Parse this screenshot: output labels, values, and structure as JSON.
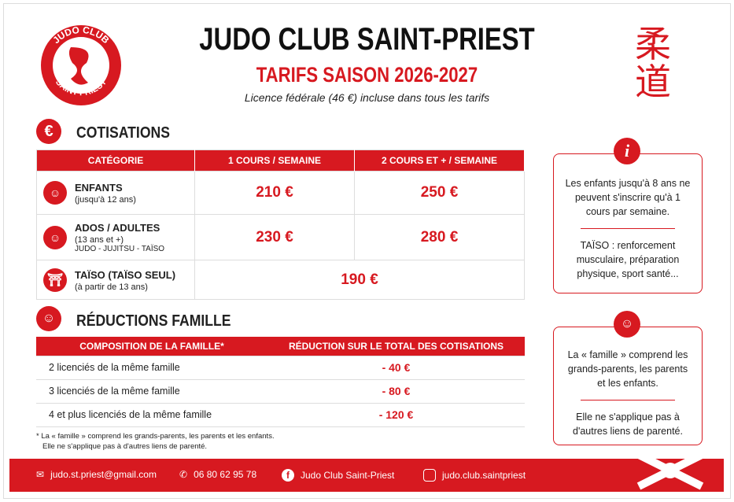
{
  "header": {
    "logo_top": "JUDO CLUB",
    "logo_bottom": "SAINT PRIEST",
    "title": "JUDO CLUB SAINT-PRIEST",
    "subtitle": "TARIFS SAISON 2026-2027",
    "note": "Licence fédérale (46 €) incluse dans tous les tarifs",
    "kanji": [
      "柔",
      "道"
    ]
  },
  "cotisations": {
    "icon": "€",
    "title": "COTISATIONS",
    "headers": [
      "CATÉGORIE",
      "1 COURS / SEMAINE",
      "2 COURS ET + / SEMAINE"
    ],
    "rows": [
      {
        "name": "ENFANTS",
        "detail": "(jusqu'à 12 ans)",
        "prices": [
          "210 €",
          "250 €"
        ]
      },
      {
        "name": "ADOS / ADULTES",
        "detail": "(13 ans et +)",
        "extra": "JUDO - JUJITSU - TAÏSO",
        "prices": [
          "230 €",
          "280 €"
        ]
      },
      {
        "name": "TAÏSO (TAÏSO SEUL)",
        "detail": "(à partir de 13 ans)",
        "prices": [
          "190 €"
        ]
      }
    ]
  },
  "reductions": {
    "title": "RÉDUCTIONS FAMILLE",
    "headers": [
      "COMPOSITION DE LA FAMILLE*",
      "RÉDUCTION SUR LE TOTAL DES COTISATIONS"
    ],
    "rows": [
      [
        "2 licenciés de la même famille",
        "- 40 €"
      ],
      [
        "3 licenciés de la même famille",
        "- 80 €"
      ],
      [
        "4 et plus licenciés de la même famille",
        "- 120 €"
      ]
    ],
    "footnote": [
      "* La « famille » comprend les grands-parents, les parents et les enfants.",
      "Elle ne s'applique pas à d'autres liens de parenté."
    ]
  },
  "info": [
    {
      "icon": "i",
      "paragraphs": [
        "Les enfants jusqu'à 8 ans ne peuvent s'inscrire qu'à 1 cours par semaine.",
        "TAÏSO : renforcement musculaire, préparation physique, sport santé..."
      ]
    },
    {
      "paragraphs": [
        "La « famille » comprend les grands-parents, les parents et les enfants.",
        "Elle ne s'applique pas à d'autres liens de parenté."
      ]
    }
  ],
  "footer": {
    "email": "judo.st.priest@gmail.com",
    "phone": "06 80 62 95 78",
    "facebook": "Judo Club Saint-Priest",
    "instagram": "judo.club.saintpriest"
  }
}
